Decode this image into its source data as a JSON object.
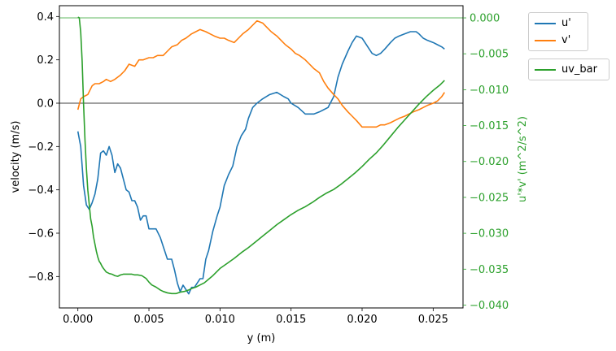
{
  "chart_data": {
    "type": "line",
    "title": "",
    "xlabel": "y (m)",
    "ylabel_left": "velocity (m/s)",
    "ylabel_right": "u'*v' (m^2/s^2)",
    "xlim": [
      -0.0013,
      0.0271
    ],
    "ylim_left": [
      -0.945,
      0.45
    ],
    "ylim_right": [
      -0.0404,
      0.0017
    ],
    "x_ticks": [
      "0.000",
      "0.005",
      "0.010",
      "0.015",
      "0.020",
      "0.025"
    ],
    "x_tick_values": [
      0,
      0.005,
      0.01,
      0.015,
      0.02,
      0.025
    ],
    "y_left_ticks": [
      "0.4",
      "0.2",
      "0.0",
      "−0.2",
      "−0.4",
      "−0.6",
      "−0.8"
    ],
    "y_left_tick_values": [
      0.4,
      0.2,
      0.0,
      -0.2,
      -0.4,
      -0.6,
      -0.8
    ],
    "y_right_ticks": [
      "0.000",
      "−0.005",
      "−0.010",
      "−0.015",
      "−0.020",
      "−0.025",
      "−0.030",
      "−0.035",
      "−0.040"
    ],
    "y_right_tick_values": [
      0,
      -0.005,
      -0.01,
      -0.015,
      -0.02,
      -0.025,
      -0.03,
      -0.035,
      -0.04
    ],
    "grid": false,
    "hlines": [
      {
        "axis": "left",
        "y": 0.0,
        "color": "#000000"
      },
      {
        "axis": "right",
        "y": 0.0,
        "color": "#2ca02c"
      }
    ],
    "legend_left_axis": {
      "placement": "outside-top-right",
      "entries": [
        "u'",
        "v'"
      ]
    },
    "legend_right_axis": {
      "placement": "outside-right",
      "entries": [
        "uv_bar"
      ]
    },
    "series": [
      {
        "name": "u'",
        "axis": "left",
        "color": "#1f77b4",
        "x": [
          0,
          0.0002,
          0.0004,
          0.0006,
          0.0008,
          0.001,
          0.0012,
          0.0014,
          0.0016,
          0.0018,
          0.002,
          0.0022,
          0.0024,
          0.0026,
          0.0028,
          0.003,
          0.0032,
          0.0034,
          0.0036,
          0.0038,
          0.004,
          0.0042,
          0.0044,
          0.0046,
          0.0048,
          0.005,
          0.0052,
          0.0055,
          0.0058,
          0.006,
          0.0063,
          0.0066,
          0.0068,
          0.007,
          0.0072,
          0.0074,
          0.0076,
          0.0078,
          0.008,
          0.0082,
          0.0084,
          0.0086,
          0.0088,
          0.009,
          0.0092,
          0.0095,
          0.0098,
          0.01,
          0.0103,
          0.0106,
          0.0109,
          0.0112,
          0.0115,
          0.0118,
          0.012,
          0.0123,
          0.0126,
          0.013,
          0.0135,
          0.014,
          0.0145,
          0.0148,
          0.015,
          0.0155,
          0.016,
          0.0163,
          0.0166,
          0.017,
          0.0173,
          0.0176,
          0.018,
          0.0183,
          0.0186,
          0.019,
          0.0193,
          0.0196,
          0.02,
          0.0202,
          0.0204,
          0.0207,
          0.021,
          0.0213,
          0.0216,
          0.022,
          0.0223,
          0.0226,
          0.023,
          0.0234,
          0.0238,
          0.024,
          0.0243,
          0.0246,
          0.025,
          0.0253,
          0.0256,
          0.0258
        ],
        "y": [
          -0.13,
          -0.2,
          -0.38,
          -0.47,
          -0.49,
          -0.46,
          -0.42,
          -0.35,
          -0.23,
          -0.22,
          -0.24,
          -0.2,
          -0.24,
          -0.32,
          -0.28,
          -0.3,
          -0.35,
          -0.4,
          -0.41,
          -0.45,
          -0.45,
          -0.48,
          -0.54,
          -0.52,
          -0.52,
          -0.58,
          -0.58,
          -0.58,
          -0.62,
          -0.66,
          -0.72,
          -0.72,
          -0.77,
          -0.83,
          -0.87,
          -0.84,
          -0.86,
          -0.88,
          -0.85,
          -0.85,
          -0.83,
          -0.81,
          -0.81,
          -0.72,
          -0.68,
          -0.59,
          -0.52,
          -0.48,
          -0.38,
          -0.33,
          -0.29,
          -0.2,
          -0.15,
          -0.12,
          -0.07,
          -0.02,
          0.0,
          0.02,
          0.04,
          0.05,
          0.03,
          0.02,
          0.0,
          -0.02,
          -0.05,
          -0.05,
          -0.05,
          -0.04,
          -0.03,
          -0.02,
          0.03,
          0.12,
          0.18,
          0.24,
          0.28,
          0.31,
          0.3,
          0.28,
          0.26,
          0.23,
          0.22,
          0.23,
          0.25,
          0.28,
          0.3,
          0.31,
          0.32,
          0.33,
          0.33,
          0.32,
          0.3,
          0.29,
          0.28,
          0.27,
          0.26,
          0.25
        ]
      },
      {
        "name": "v'",
        "axis": "left",
        "color": "#ff7f0e",
        "x": [
          0,
          0.0002,
          0.0004,
          0.0007,
          0.001,
          0.0012,
          0.0015,
          0.0018,
          0.002,
          0.0023,
          0.0026,
          0.003,
          0.0033,
          0.0036,
          0.004,
          0.0043,
          0.0046,
          0.005,
          0.0053,
          0.0056,
          0.006,
          0.0063,
          0.0066,
          0.007,
          0.0073,
          0.0076,
          0.008,
          0.0083,
          0.0086,
          0.009,
          0.0093,
          0.0096,
          0.01,
          0.0103,
          0.0106,
          0.011,
          0.0113,
          0.0116,
          0.012,
          0.0123,
          0.0126,
          0.013,
          0.0133,
          0.0136,
          0.014,
          0.0143,
          0.0146,
          0.015,
          0.0153,
          0.0156,
          0.016,
          0.0163,
          0.0166,
          0.017,
          0.0173,
          0.0176,
          0.018,
          0.0183,
          0.0186,
          0.019,
          0.0193,
          0.0196,
          0.02,
          0.0203,
          0.0206,
          0.021,
          0.0213,
          0.0216,
          0.022,
          0.0223,
          0.0226,
          0.023,
          0.0233,
          0.0236,
          0.024,
          0.0243,
          0.0246,
          0.025,
          0.0253,
          0.0256,
          0.0258
        ],
        "y": [
          -0.03,
          0.02,
          0.03,
          0.04,
          0.08,
          0.09,
          0.09,
          0.1,
          0.11,
          0.1,
          0.11,
          0.13,
          0.15,
          0.18,
          0.17,
          0.2,
          0.2,
          0.21,
          0.21,
          0.22,
          0.22,
          0.24,
          0.26,
          0.27,
          0.29,
          0.3,
          0.32,
          0.33,
          0.34,
          0.33,
          0.32,
          0.31,
          0.3,
          0.3,
          0.29,
          0.28,
          0.3,
          0.32,
          0.34,
          0.36,
          0.38,
          0.37,
          0.35,
          0.33,
          0.31,
          0.29,
          0.27,
          0.25,
          0.23,
          0.22,
          0.2,
          0.18,
          0.16,
          0.14,
          0.1,
          0.07,
          0.04,
          0.02,
          -0.01,
          -0.04,
          -0.06,
          -0.08,
          -0.11,
          -0.11,
          -0.11,
          -0.11,
          -0.1,
          -0.1,
          -0.09,
          -0.08,
          -0.07,
          -0.06,
          -0.05,
          -0.04,
          -0.03,
          -0.02,
          -0.01,
          0.0,
          0.01,
          0.03,
          0.05
        ]
      },
      {
        "name": "uv_bar",
        "axis": "right",
        "color": "#2ca02c",
        "x": [
          0,
          0.0001,
          0.0002,
          0.0003,
          0.0004,
          0.0005,
          0.0006,
          0.0007,
          0.0008,
          0.0009,
          0.001,
          0.0011,
          0.0012,
          0.0013,
          0.0014,
          0.0015,
          0.0016,
          0.0017,
          0.0018,
          0.002,
          0.0022,
          0.0024,
          0.0026,
          0.0028,
          0.003,
          0.0032,
          0.0035,
          0.0038,
          0.004,
          0.0042,
          0.0045,
          0.0048,
          0.005,
          0.0052,
          0.0055,
          0.0058,
          0.006,
          0.0063,
          0.0066,
          0.0069,
          0.0072,
          0.0075,
          0.0078,
          0.008,
          0.0083,
          0.0086,
          0.0089,
          0.0092,
          0.0095,
          0.0098,
          0.01,
          0.0105,
          0.011,
          0.0115,
          0.012,
          0.0125,
          0.013,
          0.0135,
          0.014,
          0.0145,
          0.015,
          0.0155,
          0.016,
          0.0165,
          0.017,
          0.0175,
          0.018,
          0.0185,
          0.019,
          0.0195,
          0.02,
          0.0205,
          0.021,
          0.0215,
          0.022,
          0.0225,
          0.023,
          0.0235,
          0.024,
          0.0245,
          0.025,
          0.0255,
          0.0258
        ],
        "y": [
          0.0001,
          0.0,
          -0.002,
          -0.006,
          -0.012,
          -0.017,
          -0.021,
          -0.024,
          -0.026,
          -0.028,
          -0.029,
          -0.0305,
          -0.0315,
          -0.0325,
          -0.0333,
          -0.0339,
          -0.0342,
          -0.0346,
          -0.0349,
          -0.0354,
          -0.0356,
          -0.0357,
          -0.0359,
          -0.036,
          -0.0358,
          -0.0357,
          -0.0357,
          -0.0357,
          -0.0358,
          -0.0358,
          -0.0359,
          -0.0363,
          -0.0368,
          -0.0372,
          -0.0375,
          -0.0379,
          -0.0381,
          -0.0383,
          -0.0384,
          -0.0384,
          -0.0382,
          -0.0381,
          -0.0379,
          -0.0377,
          -0.0375,
          -0.0372,
          -0.0369,
          -0.0364,
          -0.0359,
          -0.0353,
          -0.0349,
          -0.0342,
          -0.0335,
          -0.0327,
          -0.032,
          -0.0312,
          -0.0304,
          -0.0296,
          -0.0288,
          -0.0281,
          -0.0274,
          -0.0268,
          -0.0263,
          -0.0257,
          -0.025,
          -0.0244,
          -0.0239,
          -0.0232,
          -0.0224,
          -0.0216,
          -0.0207,
          -0.0197,
          -0.0188,
          -0.0177,
          -0.0165,
          -0.0153,
          -0.0142,
          -0.0131,
          -0.012,
          -0.011,
          -0.0101,
          -0.0093,
          -0.0087
        ]
      }
    ]
  }
}
